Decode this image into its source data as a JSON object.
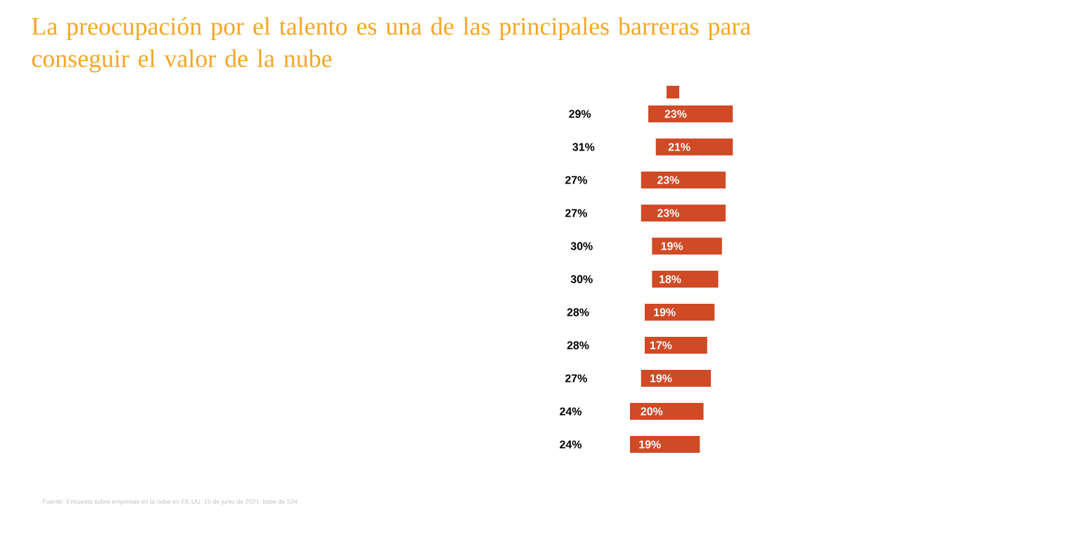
{
  "chart_data": {
    "type": "bar",
    "orientation": "horizontal",
    "stacked": true,
    "title": "La preocupación por el talento es una de las principales barreras para conseguir el valor de la nube",
    "categories": [
      null,
      null,
      null,
      null,
      null,
      null,
      null,
      null,
      null,
      null,
      null
    ],
    "series": [
      {
        "color": "#ffffff",
        "values": [
          29,
          31,
          27,
          27,
          30,
          30,
          28,
          28,
          27,
          24,
          24
        ],
        "value_labels": [
          "29%",
          "31%",
          "27%",
          "27%",
          "30%",
          "30%",
          "28%",
          "28%",
          "27%",
          "24%",
          "24%"
        ]
      },
      {
        "color": "#d04a26",
        "values": [
          23,
          21,
          23,
          23,
          19,
          18,
          19,
          17,
          19,
          20,
          19
        ],
        "value_labels": [
          "23%",
          "21%",
          "23%",
          "23%",
          "19%",
          "18%",
          "19%",
          "17%",
          "19%",
          "20%",
          "19%"
        ]
      }
    ],
    "tick_labels": false,
    "annotations": [
      "Fuente: Encuesta sobre empresas en la nube en EE.UU. 15 de junio de 2021; base de 524"
    ]
  }
}
